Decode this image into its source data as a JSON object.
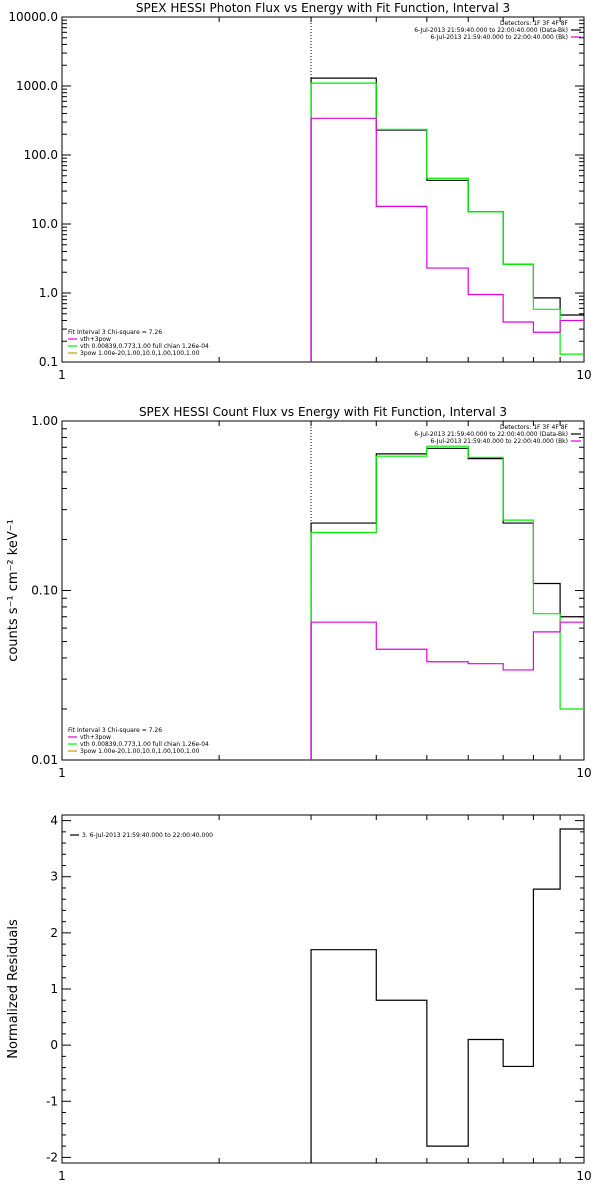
{
  "colors": {
    "black": "#000000",
    "green": "#00ee00",
    "magenta": "#e000e0"
  },
  "chart_data": [
    {
      "type": "line",
      "step": true,
      "title": "SPEX HESSI Photon Flux vs Energy with Fit Function, Interval 3",
      "xlabel": "",
      "ylabel": "",
      "xscale": "log",
      "yscale": "log",
      "xlim": [
        1,
        10
      ],
      "ylim": [
        0.1,
        10000
      ],
      "x_ticks": [
        1,
        10
      ],
      "x_tick_labels": [
        "1",
        "10"
      ],
      "y_ticks": [
        0.1,
        1,
        10,
        100,
        1000,
        10000
      ],
      "y_tick_labels": [
        "0.1",
        "1.0",
        "10.0",
        "100.0",
        "1000.0",
        "10000.0"
      ],
      "vline": 3,
      "bin_edges": [
        3,
        4,
        5,
        6,
        7,
        8,
        9,
        10
      ],
      "series": [
        {
          "color": "black",
          "values": [
            1300,
            230,
            43,
            15,
            2.6,
            0.85,
            0.48
          ]
        },
        {
          "color": "green",
          "values": [
            1100,
            235,
            46,
            15,
            2.6,
            0.58,
            0.13
          ]
        },
        {
          "color": "magenta",
          "values": [
            340,
            18,
            2.3,
            0.95,
            0.38,
            0.27,
            0.4
          ]
        }
      ],
      "legend_topright": {
        "lines": [
          "Detectors: 1F 3F 4F 8F",
          "6-Jul-2013 21:59:40.000 to 22:00:40.000 (Data-Bk)",
          "6-Jul-2013 21:59:40.000 to 22:00:40.000 (Bk)"
        ],
        "colors": [
          "",
          "black",
          "magenta"
        ]
      },
      "legend_bottomleft": {
        "lines": [
          "Fit Interval 3   Chi-square = 7.26",
          "vth+3pow",
          "vth 0.00839,0.773,1.00   full chian 1.26e-04",
          "3pow 1.00e-20,1.00,10.0,1.00,100,1.00"
        ],
        "colors": [
          "",
          "magenta",
          "green",
          "#bba000"
        ]
      }
    },
    {
      "type": "line",
      "step": true,
      "title": "SPEX HESSI Count Flux vs Energy with Fit Function, Interval 3",
      "xlabel": "",
      "ylabel": "counts s⁻¹ cm⁻² keV⁻¹",
      "xscale": "log",
      "yscale": "log",
      "xlim": [
        1,
        10
      ],
      "ylim": [
        0.01,
        1
      ],
      "x_ticks": [
        1,
        10
      ],
      "x_tick_labels": [
        "1",
        "10"
      ],
      "y_ticks": [
        0.01,
        0.1,
        1
      ],
      "y_tick_labels": [
        "0.01",
        "0.10",
        "1.00"
      ],
      "vline": 3,
      "bin_edges": [
        3,
        4,
        5,
        6,
        7,
        8,
        9,
        10
      ],
      "series": [
        {
          "color": "black",
          "values": [
            0.25,
            0.64,
            0.69,
            0.6,
            0.25,
            0.11,
            0.07
          ]
        },
        {
          "color": "green",
          "values": [
            0.22,
            0.62,
            0.71,
            0.61,
            0.26,
            0.073,
            0.02
          ]
        },
        {
          "color": "magenta",
          "values": [
            0.065,
            0.045,
            0.038,
            0.037,
            0.034,
            0.057,
            0.065
          ]
        }
      ],
      "legend_topright": {
        "lines": [
          "Detectors: 1F 3F 4F 8F",
          "6-Jul-2013 21:59:40.000 to 22:00:40.000 (Data-Bk)",
          "6-Jul-2013 21:59:40.000 to 22:00:40.000 (Bk)"
        ],
        "colors": [
          "",
          "black",
          "magenta"
        ]
      },
      "legend_bottomleft": {
        "lines": [
          "Fit Interval 3   Chi-square = 7.26",
          "vth+3pow",
          "vth 0.00839,0.773,1.00   full chian 1.26e-04",
          "3pow 1.00e-20,1.00,10.0,1.00,100,1.00"
        ],
        "colors": [
          "",
          "magenta",
          "green",
          "#bba000"
        ]
      }
    },
    {
      "type": "line",
      "step": true,
      "title": "",
      "xlabel": "",
      "ylabel": "Normalized Residuals",
      "xscale": "log",
      "yscale": "linear",
      "xlim": [
        1,
        10
      ],
      "ylim": [
        -2.1,
        4.1
      ],
      "x_ticks": [
        1,
        10
      ],
      "x_tick_labels": [
        "1",
        "10"
      ],
      "y_ticks": [
        -2,
        -1,
        0,
        1,
        2,
        3,
        4
      ],
      "y_tick_labels": [
        "-2",
        "-1",
        "0",
        "1",
        "2",
        "3",
        "4"
      ],
      "bin_edges": [
        3,
        4,
        5,
        6,
        7,
        8,
        9,
        10
      ],
      "series": [
        {
          "color": "black",
          "values": [
            1.7,
            0.8,
            -1.8,
            0.1,
            -0.38,
            2.78,
            3.85
          ]
        }
      ],
      "legend_topleft": {
        "lines": [
          "3.  6-Jul-2013 21:59:40.000 to 22:00:40.000"
        ],
        "colors": [
          "black"
        ]
      }
    }
  ]
}
